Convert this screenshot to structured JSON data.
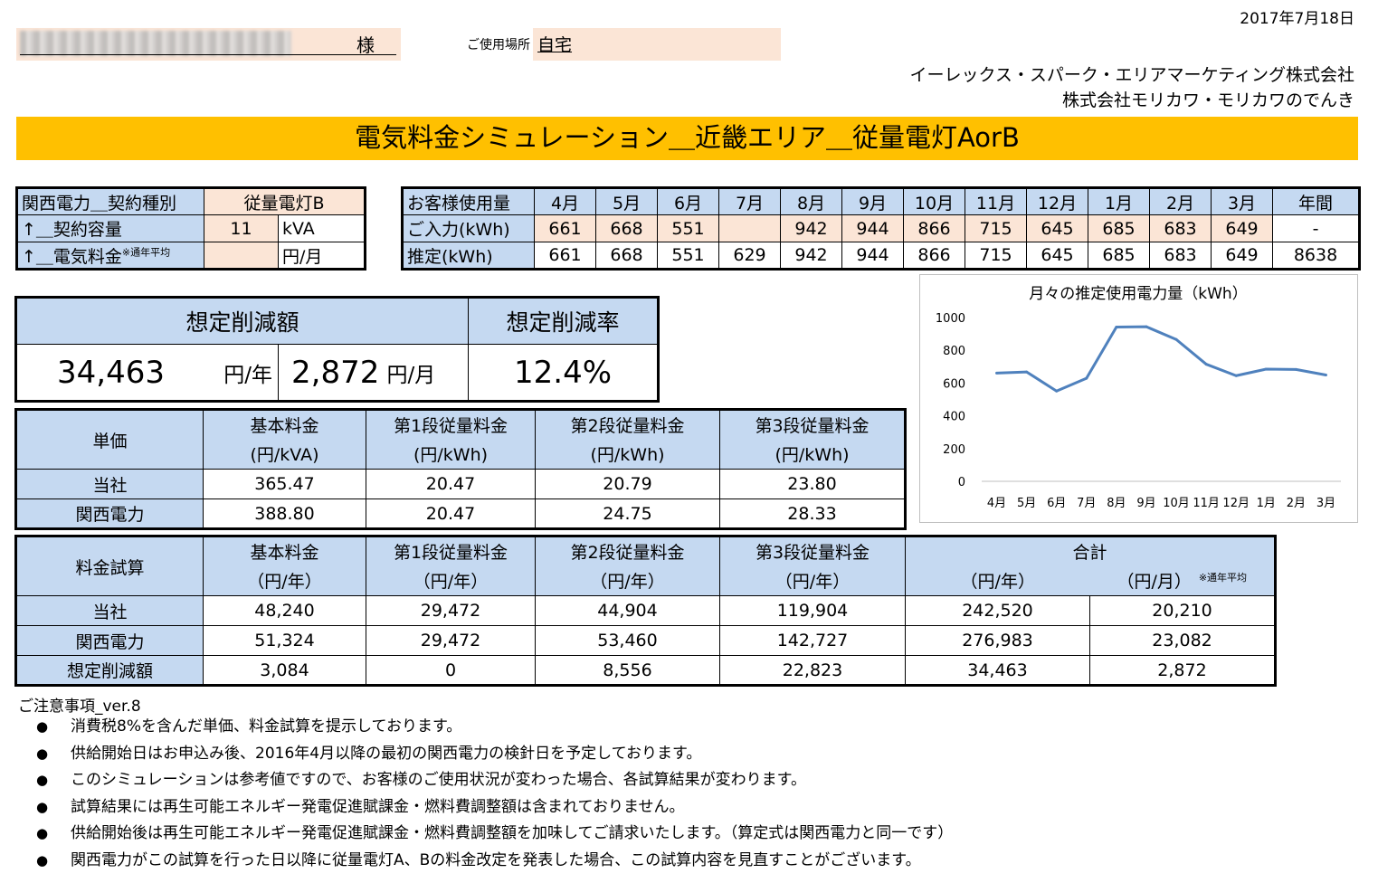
{
  "header": {
    "date": "2017年7月18日",
    "customer_suffix": "様",
    "place_label": "ご使用場所",
    "place_value": "自宅",
    "company1": "イーレックス・スパーク・エリアマーケティング株式会社",
    "company2": "株式会社モリカワ・モリカワのでんき"
  },
  "banner": {
    "title": "電気料金シミュレーション＿近畿エリア＿従量電灯AorB"
  },
  "contract": {
    "row1_label": "関西電力＿契約種別",
    "row1_value": "従量電灯B",
    "row2_label": "↑＿契約容量",
    "row2_value": "11",
    "row2_unit": "kVA",
    "row3_label": "↑＿電気料金",
    "row3_note": "※通年平均",
    "row3_value": "",
    "row3_unit": "円/月"
  },
  "usage": {
    "header_label": "お客様使用量",
    "months": [
      "4月",
      "5月",
      "6月",
      "7月",
      "8月",
      "9月",
      "10月",
      "11月",
      "12月",
      "1月",
      "2月",
      "3月",
      "年間"
    ],
    "input_label": "ご入力(kWh)",
    "input_values": [
      "661",
      "668",
      "551",
      "",
      "942",
      "944",
      "866",
      "715",
      "645",
      "685",
      "683",
      "649",
      "-"
    ],
    "estimate_label": "推定(kWh)",
    "estimate_values": [
      "661",
      "668",
      "551",
      "629",
      "942",
      "944",
      "866",
      "715",
      "645",
      "685",
      "683",
      "649",
      "8638"
    ]
  },
  "savings": {
    "amount_header": "想定削減額",
    "rate_header": "想定削減率",
    "yearly_value": "34,463",
    "yearly_unit": "円/年",
    "monthly_value": "2,872",
    "monthly_unit": "円/月",
    "rate_value": "12.4%"
  },
  "unit_price": {
    "corner": "単価",
    "headers": [
      "基本料金",
      "第1段従量料金",
      "第2段従量料金",
      "第3段従量料金"
    ],
    "units": [
      "(円/kVA)",
      "(円/kWh)",
      "(円/kWh)",
      "(円/kWh)"
    ],
    "rows": [
      {
        "label": "当社",
        "values": [
          "365.47",
          "20.47",
          "20.79",
          "23.80"
        ]
      },
      {
        "label": "関西電力",
        "values": [
          "388.80",
          "20.47",
          "24.75",
          "28.33"
        ]
      }
    ]
  },
  "fee_calc": {
    "corner": "料金試算",
    "headers": [
      "基本料金",
      "第1段従量料金",
      "第2段従量料金",
      "第3段従量料金",
      "合計"
    ],
    "units": [
      "（円/年）",
      "（円/年）",
      "（円/年）",
      "（円/年）",
      "（円/年）",
      "（円/月）"
    ],
    "monthly_note": "※通年平均",
    "rows": [
      {
        "label": "当社",
        "values": [
          "48,240",
          "29,472",
          "44,904",
          "119,904",
          "242,520",
          "20,210"
        ]
      },
      {
        "label": "関西電力",
        "values": [
          "51,324",
          "29,472",
          "53,460",
          "142,727",
          "276,983",
          "23,082"
        ]
      },
      {
        "label": "想定削減額",
        "values": [
          "3,084",
          "0",
          "8,556",
          "22,823",
          "34,463",
          "2,872"
        ]
      }
    ]
  },
  "chart_data": {
    "type": "line",
    "title": "月々の推定使用電力量（kWh）",
    "categories": [
      "4月",
      "5月",
      "6月",
      "7月",
      "8月",
      "9月",
      "10月",
      "11月",
      "12月",
      "1月",
      "2月",
      "3月"
    ],
    "series": [
      {
        "values": [
          661,
          668,
          551,
          629,
          942,
          944,
          866,
          715,
          645,
          685,
          683,
          649
        ],
        "color": "#4f81bd"
      }
    ],
    "yticks": [
      "0",
      "200",
      "400",
      "600",
      "800",
      "1000"
    ],
    "ylim": [
      0,
      1000
    ],
    "grid": false,
    "legend": "none"
  },
  "notes": {
    "title": "ご注意事項_ver.8",
    "bullet": "●",
    "items": [
      "消費税8%を含んだ単価、料金試算を提示しております。",
      "供給開始日はお申込み後、2016年4月以降の最初の関西電力の検針日を予定しております。",
      "このシミュレーションは参考値ですので、お客様のご使用状況が変わった場合、各試算結果が変わります。",
      "試算結果には再生可能エネルギー発電促進賦課金・燃料費調整額は含まれておりません。",
      "供給開始後は再生可能エネルギー発電促進賦課金・燃料費調整額を加味してご請求いたします。（算定式は関西電力と同一です）",
      "関西電力がこの試算を行った日以降に従量電灯A、Bの料金改定を発表した場合、この試算内容を見直すことがございます。"
    ]
  }
}
